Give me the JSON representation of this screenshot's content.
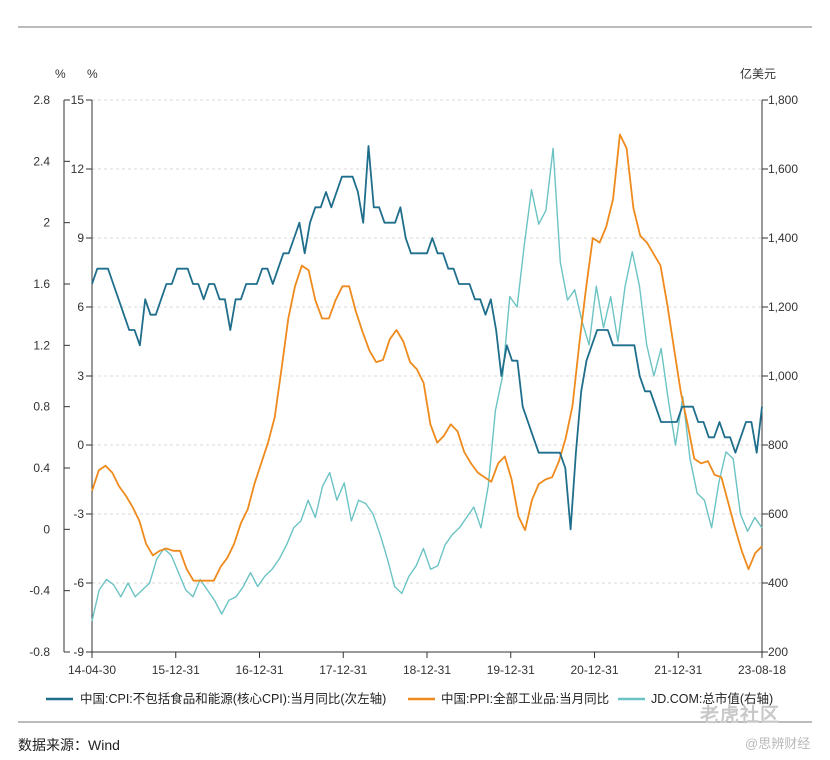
{
  "source_label": "数据来源：Wind",
  "watermark": {
    "text1": "老虎社区",
    "text2": "@思辨财经"
  },
  "chart_data": {
    "type": "line",
    "colors": {
      "cpi": "#1f6e8c",
      "ppi": "#ef8a1c",
      "jd": "#6cc3c4",
      "grid": "#d9d9d9",
      "axis": "#333333"
    },
    "axes": {
      "left_outer": {
        "unit": "%",
        "ticks": [
          "2.8",
          "2.4",
          "2",
          "1.6",
          "1.2",
          "0.8",
          "0.4",
          "0",
          "-0.4",
          "-0.8"
        ],
        "range": [
          -0.8,
          2.8
        ]
      },
      "left_inner": {
        "unit": "%",
        "ticks": [
          "15",
          "12",
          "9",
          "6",
          "3",
          "0",
          "-3",
          "-6",
          "-9"
        ],
        "range": [
          -9,
          15
        ]
      },
      "right": {
        "unit": "亿美元",
        "ticks": [
          "1,800",
          "1,600",
          "1,400",
          "1,200",
          "1,000",
          "800",
          "600",
          "400",
          "200"
        ],
        "range": [
          200,
          1800
        ]
      },
      "x": {
        "ticks": [
          "14-04-30",
          "15-12-31",
          "16-12-31",
          "17-12-31",
          "18-12-31",
          "19-12-31",
          "20-12-31",
          "21-12-31",
          "23-08-18"
        ]
      }
    },
    "legend": [
      "中国:CPI:不包括食品和能源(核心CPI):当月同比(次左轴)",
      "中国:PPI:全部工业品:当月同比",
      "JD.COM:总市值(右轴)"
    ],
    "series": [
      {
        "name": "中国:CPI:不包括食品和能源(核心CPI):当月同比(次左轴)",
        "axis": "left_outer",
        "values": [
          1.6,
          1.7,
          1.7,
          1.7,
          1.6,
          1.5,
          1.4,
          1.3,
          1.3,
          1.2,
          1.5,
          1.4,
          1.4,
          1.5,
          1.6,
          1.6,
          1.7,
          1.7,
          1.7,
          1.6,
          1.6,
          1.5,
          1.6,
          1.6,
          1.5,
          1.5,
          1.3,
          1.5,
          1.5,
          1.6,
          1.6,
          1.6,
          1.7,
          1.7,
          1.6,
          1.7,
          1.8,
          1.8,
          1.9,
          2.0,
          1.8,
          2.0,
          2.1,
          2.1,
          2.2,
          2.1,
          2.2,
          2.3,
          2.3,
          2.3,
          2.2,
          2.0,
          2.5,
          2.1,
          2.1,
          2.0,
          2.0,
          2.0,
          2.1,
          1.9,
          1.8,
          1.8,
          1.8,
          1.8,
          1.9,
          1.8,
          1.8,
          1.7,
          1.7,
          1.6,
          1.6,
          1.6,
          1.5,
          1.5,
          1.4,
          1.5,
          1.3,
          1.0,
          1.2,
          1.1,
          1.1,
          0.8,
          0.7,
          0.6,
          0.5,
          0.5,
          0.5,
          0.5,
          0.5,
          0.4,
          0.0,
          0.5,
          0.9,
          1.1,
          1.2,
          1.3,
          1.3,
          1.3,
          1.2,
          1.2,
          1.2,
          1.2,
          1.2,
          1.0,
          0.9,
          0.9,
          0.8,
          0.7,
          0.7,
          0.7,
          0.7,
          0.8,
          0.8,
          0.8,
          0.7,
          0.7,
          0.6,
          0.6,
          0.7,
          0.6,
          0.6,
          0.5,
          0.6,
          0.7,
          0.7,
          0.5,
          0.8
        ]
      },
      {
        "name": "中国:PPI:全部工业品:当月同比",
        "axis": "left_inner",
        "values": [
          -2.0,
          -1.1,
          -0.9,
          -1.2,
          -1.8,
          -2.2,
          -2.7,
          -3.3,
          -4.3,
          -4.8,
          -4.6,
          -4.5,
          -4.6,
          -4.6,
          -5.4,
          -5.9,
          -5.9,
          -5.9,
          -5.9,
          -5.3,
          -4.9,
          -4.3,
          -3.4,
          -2.8,
          -1.7,
          -0.8,
          0.1,
          1.2,
          3.3,
          5.5,
          6.9,
          7.8,
          7.6,
          6.3,
          5.5,
          5.5,
          6.3,
          6.9,
          6.9,
          5.8,
          4.9,
          4.1,
          3.6,
          3.7,
          4.6,
          5.0,
          4.5,
          3.6,
          3.3,
          2.7,
          0.9,
          0.1,
          0.4,
          0.9,
          0.6,
          -0.3,
          -0.8,
          -1.2,
          -1.4,
          -1.6,
          -0.8,
          -0.5,
          -1.5,
          -3.1,
          -3.7,
          -2.4,
          -1.7,
          -1.5,
          -1.4,
          -0.7,
          0.3,
          1.7,
          4.4,
          6.8,
          9.0,
          8.8,
          9.5,
          10.7,
          13.5,
          12.9,
          10.3,
          9.1,
          8.8,
          8.3,
          7.8,
          6.1,
          4.2,
          2.3,
          0.9,
          -0.6,
          -0.8,
          -0.7,
          -1.3,
          -1.4,
          -2.5,
          -3.6,
          -4.6,
          -5.4,
          -4.7,
          -4.4
        ]
      },
      {
        "name": "JD.COM:总市值(右轴)",
        "axis": "right",
        "values": [
          290,
          380,
          410,
          395,
          360,
          400,
          360,
          380,
          400,
          470,
          500,
          480,
          430,
          380,
          360,
          410,
          380,
          350,
          310,
          350,
          360,
          390,
          430,
          390,
          420,
          440,
          470,
          510,
          560,
          580,
          640,
          590,
          680,
          720,
          640,
          690,
          580,
          640,
          630,
          600,
          540,
          470,
          390,
          370,
          420,
          450,
          500,
          440,
          450,
          510,
          540,
          560,
          590,
          620,
          560,
          680,
          900,
          1000,
          1230,
          1200,
          1380,
          1540,
          1440,
          1480,
          1660,
          1330,
          1220,
          1250,
          1160,
          1090,
          1260,
          1140,
          1230,
          1100,
          1260,
          1360,
          1260,
          1090,
          1000,
          1080,
          930,
          800,
          940,
          760,
          660,
          640,
          560,
          690,
          780,
          760,
          600,
          550,
          590,
          560
        ]
      }
    ]
  }
}
